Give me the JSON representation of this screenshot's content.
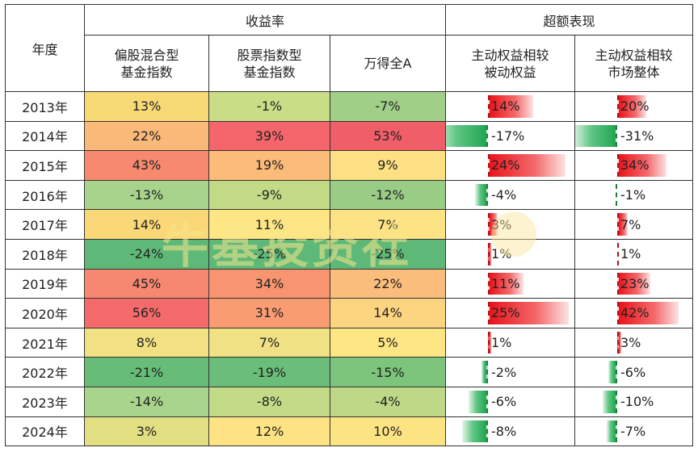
{
  "headers": {
    "year": "年度",
    "returns_group": "收益率",
    "excess_group": "超额表现",
    "col_mixed": "偏股混合型\n基金指数",
    "col_stock": "股票指数型\n基金指数",
    "col_wind": "万得全A",
    "col_active_vs_passive": "主动权益相较\n被动权益",
    "col_active_vs_market": "主动权益相较\n市场整体"
  },
  "rows": [
    {
      "year": "2013年",
      "mixed": "13%",
      "stock": "-1%",
      "wind": "-7%",
      "vs_passive": "14%",
      "vs_market": "20%",
      "vp": 14,
      "vm": 20
    },
    {
      "year": "2014年",
      "mixed": "22%",
      "stock": "39%",
      "wind": "53%",
      "vs_passive": "-17%",
      "vs_market": "-31%",
      "vp": -17,
      "vm": -31
    },
    {
      "year": "2015年",
      "mixed": "43%",
      "stock": "19%",
      "wind": "9%",
      "vs_passive": "24%",
      "vs_market": "34%",
      "vp": 24,
      "vm": 34
    },
    {
      "year": "2016年",
      "mixed": "-13%",
      "stock": "-9%",
      "wind": "-12%",
      "vs_passive": "-4%",
      "vs_market": "-1%",
      "vp": -4,
      "vm": -1
    },
    {
      "year": "2017年",
      "mixed": "14%",
      "stock": "11%",
      "wind": "7%",
      "vs_passive": "3%",
      "vs_market": "7%",
      "vp": 3,
      "vm": 7
    },
    {
      "year": "2018年",
      "mixed": "-24%",
      "stock": "-25%",
      "wind": "-25%",
      "vs_passive": "1%",
      "vs_market": "1%",
      "vp": 1,
      "vm": 1
    },
    {
      "year": "2019年",
      "mixed": "45%",
      "stock": "34%",
      "wind": "22%",
      "vs_passive": "11%",
      "vs_market": "23%",
      "vp": 11,
      "vm": 23
    },
    {
      "year": "2020年",
      "mixed": "56%",
      "stock": "31%",
      "wind": "14%",
      "vs_passive": "25%",
      "vs_market": "42%",
      "vp": 25,
      "vm": 42
    },
    {
      "year": "2021年",
      "mixed": "8%",
      "stock": "7%",
      "wind": "5%",
      "vs_passive": "1%",
      "vs_market": "3%",
      "vp": 1,
      "vm": 3
    },
    {
      "year": "2022年",
      "mixed": "-21%",
      "stock": "-19%",
      "wind": "-15%",
      "vs_passive": "-2%",
      "vs_market": "-6%",
      "vp": -2,
      "vm": -6
    },
    {
      "year": "2023年",
      "mixed": "-14%",
      "stock": "-8%",
      "wind": "-4%",
      "vs_passive": "-6%",
      "vs_market": "-10%",
      "vp": -6,
      "vm": -10
    },
    {
      "year": "2024年",
      "mixed": "3%",
      "stock": "12%",
      "wind": "10%",
      "vs_passive": "-8%",
      "vs_market": "-7%",
      "vp": -8,
      "vm": -7
    }
  ],
  "heat_colors": {
    "mixed": [
      "#f7d976",
      "#fbb979",
      "#f7896f",
      "#a8d38c",
      "#fbd877",
      "#5eb978",
      "#f68770",
      "#f56b6b",
      "#f1e183",
      "#67bc78",
      "#a9d48c",
      "#e2df82"
    ],
    "stock": [
      "#c9dc86",
      "#f4666b",
      "#fbbb79",
      "#c3da87",
      "#fde683",
      "#5eb978",
      "#f8946f",
      "#f99c72",
      "#f0e184",
      "#6abe79",
      "#c3da87",
      "#fde383"
    ],
    "wind": [
      "#a0cf87",
      "#f05f68",
      "#fde083",
      "#99cd86",
      "#fde383",
      "#5eb978",
      "#fbbd7b",
      "#fdd47f",
      "#fde683",
      "#7dc47c",
      "#bed888",
      "#fde483"
    ]
  },
  "watermark": "牛基投资社"
}
